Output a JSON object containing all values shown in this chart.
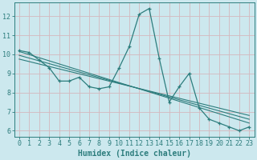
{
  "xlabel": "Humidex (Indice chaleur)",
  "ylabel": "",
  "bg_color": "#cce8ee",
  "grid_color": "#b0d8e0",
  "line_color": "#2d7d7d",
  "xlim": [
    -0.5,
    23.5
  ],
  "ylim": [
    5.7,
    12.7
  ],
  "yticks": [
    6,
    7,
    8,
    9,
    10,
    11,
    12
  ],
  "xticks": [
    0,
    1,
    2,
    3,
    4,
    5,
    6,
    7,
    8,
    9,
    10,
    11,
    12,
    13,
    14,
    15,
    16,
    17,
    18,
    19,
    20,
    21,
    22,
    23
  ],
  "xtick_labels": [
    "0",
    "1",
    "2",
    "3",
    "4",
    "5",
    "6",
    "7",
    "8",
    "9",
    "10",
    "11",
    "12",
    "13",
    "14",
    "15",
    "16",
    "17",
    "18",
    "19",
    "20",
    "21",
    "22",
    "23"
  ],
  "data_x": [
    0,
    1,
    2,
    3,
    4,
    5,
    6,
    7,
    8,
    9,
    10,
    11,
    12,
    13,
    14,
    15,
    16,
    17,
    18,
    19,
    20,
    21,
    22,
    23
  ],
  "data_y": [
    10.2,
    10.1,
    9.7,
    9.3,
    8.6,
    8.6,
    8.8,
    8.3,
    8.2,
    8.3,
    9.3,
    10.4,
    12.1,
    12.4,
    9.8,
    7.5,
    8.3,
    9.0,
    7.2,
    6.6,
    6.4,
    6.2,
    6.0,
    6.2
  ],
  "trend_lines": [
    [
      [
        0,
        23
      ],
      [
        10.15,
        6.4
      ]
    ],
    [
      [
        0,
        23
      ],
      [
        9.95,
        6.6
      ]
    ],
    [
      [
        0,
        23
      ],
      [
        9.75,
        6.8
      ]
    ]
  ],
  "tick_fontsize": 6.0,
  "label_fontsize": 7.0
}
